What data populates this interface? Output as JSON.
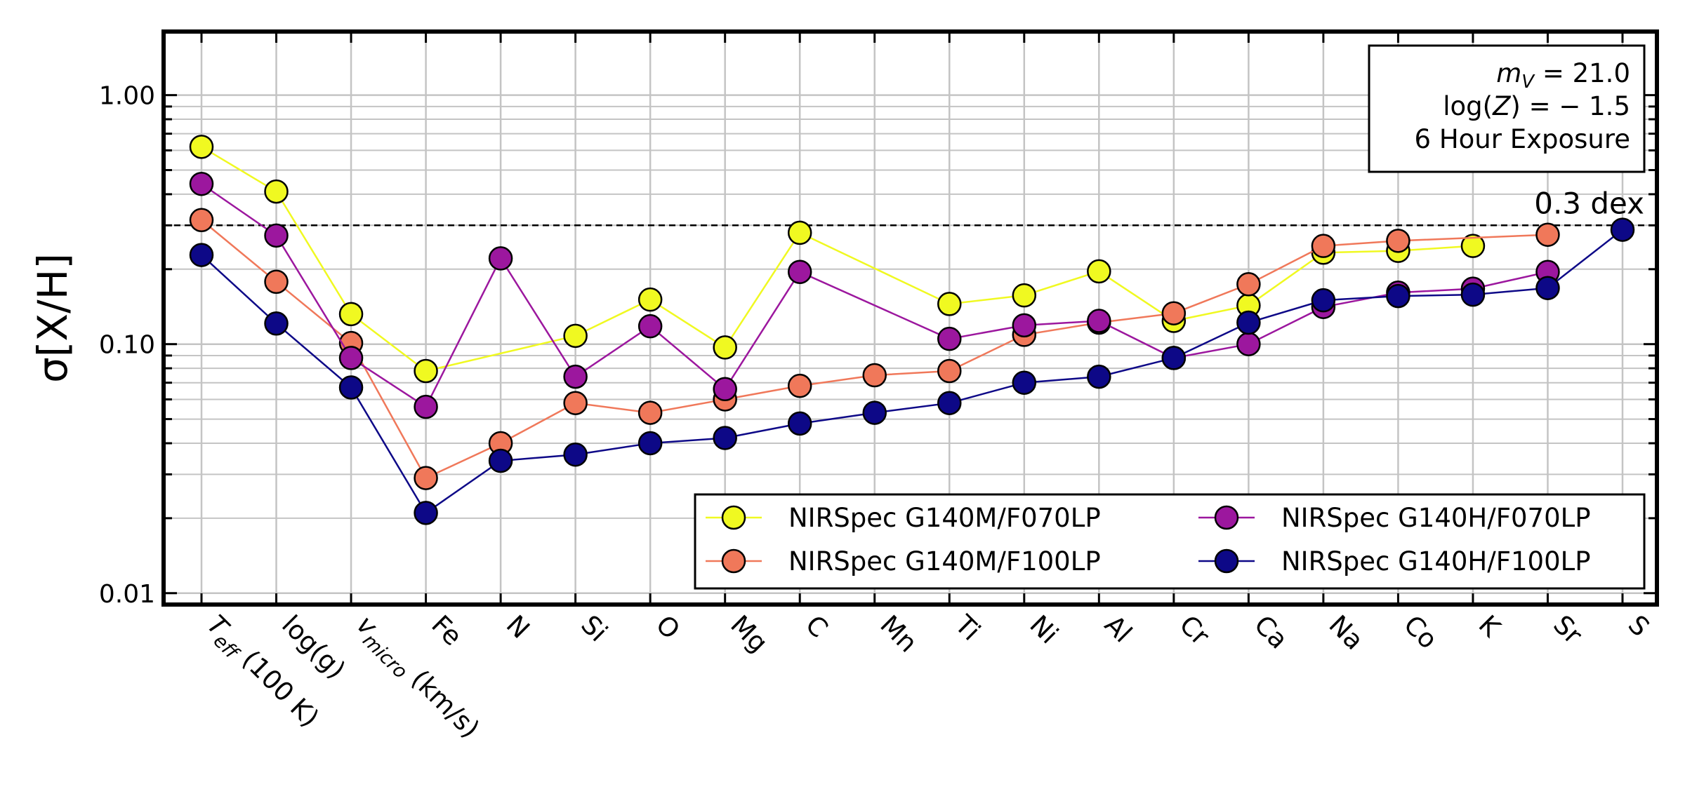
{
  "chart_data": {
    "type": "line",
    "title": "",
    "xlabel": "",
    "ylabel": "σ[X/H]",
    "yscale": "log",
    "ylim": [
      0.009,
      1.8
    ],
    "yticks": [
      {
        "value": 0.01,
        "label": "0.01"
      },
      {
        "value": 0.1,
        "label": "0.10"
      },
      {
        "value": 1.0,
        "label": "1.00"
      }
    ],
    "grid": true,
    "categories": [
      {
        "main": "T",
        "sub": "eff",
        "suffix": " (100 K)"
      },
      {
        "main": "log(g)",
        "sub": "",
        "suffix": ""
      },
      {
        "main": "v",
        "sub": "micro",
        "suffix": " (km/s)"
      },
      {
        "main": "Fe",
        "sub": "",
        "suffix": ""
      },
      {
        "main": "N",
        "sub": "",
        "suffix": ""
      },
      {
        "main": "Si",
        "sub": "",
        "suffix": ""
      },
      {
        "main": "O",
        "sub": "",
        "suffix": ""
      },
      {
        "main": "Mg",
        "sub": "",
        "suffix": ""
      },
      {
        "main": "C",
        "sub": "",
        "suffix": ""
      },
      {
        "main": "Mn",
        "sub": "",
        "suffix": ""
      },
      {
        "main": "Ti",
        "sub": "",
        "suffix": ""
      },
      {
        "main": "Ni",
        "sub": "",
        "suffix": ""
      },
      {
        "main": "Al",
        "sub": "",
        "suffix": ""
      },
      {
        "main": "Cr",
        "sub": "",
        "suffix": ""
      },
      {
        "main": "Ca",
        "sub": "",
        "suffix": ""
      },
      {
        "main": "Na",
        "sub": "",
        "suffix": ""
      },
      {
        "main": "Co",
        "sub": "",
        "suffix": ""
      },
      {
        "main": "K",
        "sub": "",
        "suffix": ""
      },
      {
        "main": "Sr",
        "sub": "",
        "suffix": ""
      },
      {
        "main": "S",
        "sub": "",
        "suffix": ""
      }
    ],
    "reference_line": {
      "value": 0.3,
      "label": "0.3 dex"
    },
    "annotation": {
      "lines": [
        {
          "italic": "m",
          "sub": "V",
          "rest": " = 21.0"
        },
        {
          "pre": "log(",
          "italic": "Z",
          "rest": ") = − 1.5"
        },
        {
          "text": "6 Hour Exposure"
        }
      ]
    },
    "legend": {
      "placement": "lower-right",
      "columns": 2
    },
    "series": [
      {
        "name": "NIRSpec G140M/F070LP",
        "color": "#f0f921",
        "values": [
          0.62,
          0.41,
          0.132,
          0.078,
          null,
          0.108,
          0.151,
          0.097,
          0.28,
          null,
          0.145,
          0.157,
          0.196,
          0.124,
          0.143,
          0.233,
          0.237,
          0.248,
          null,
          null
        ]
      },
      {
        "name": "NIRSpec G140M/F100LP",
        "color": "#f0785a",
        "values": [
          0.315,
          0.178,
          0.101,
          0.029,
          0.04,
          0.058,
          0.053,
          0.06,
          0.068,
          0.075,
          0.078,
          0.109,
          0.122,
          0.133,
          0.174,
          0.248,
          0.26,
          null,
          0.275,
          null
        ]
      },
      {
        "name": "NIRSpec G140H/F070LP",
        "color": "#9c179e",
        "values": [
          0.44,
          0.273,
          0.088,
          0.056,
          0.221,
          0.074,
          0.118,
          0.066,
          0.195,
          null,
          0.105,
          0.119,
          0.124,
          0.088,
          0.1,
          0.141,
          0.161,
          0.167,
          0.195,
          null
        ]
      },
      {
        "name": "NIRSpec G140H/F100LP",
        "color": "#0d0887",
        "values": [
          0.228,
          0.121,
          0.067,
          0.021,
          0.034,
          0.036,
          0.04,
          0.042,
          0.048,
          0.053,
          0.058,
          0.07,
          0.074,
          0.088,
          0.122,
          0.15,
          0.156,
          0.158,
          0.168,
          0.288
        ]
      }
    ]
  }
}
